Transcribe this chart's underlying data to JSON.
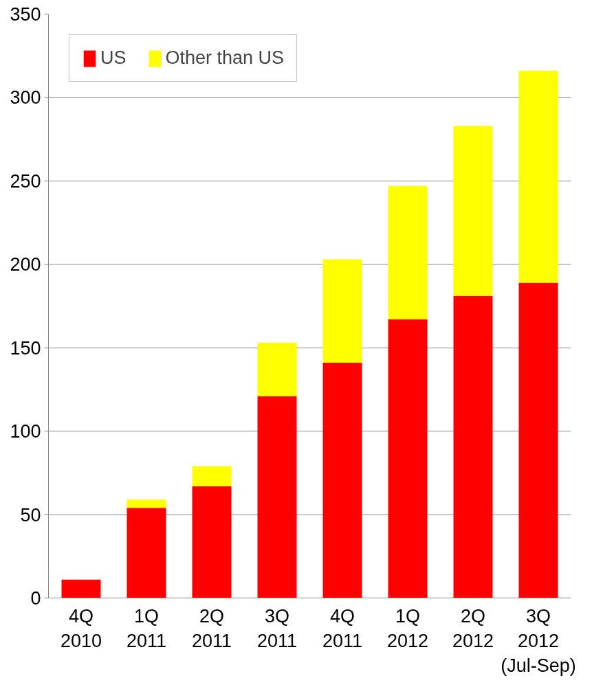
{
  "chart_data": {
    "type": "bar",
    "stacked": true,
    "categories": [
      "4Q\n2010",
      "1Q\n2011",
      "2Q\n2011",
      "3Q\n2011",
      "4Q\n2011",
      "1Q\n2012",
      "2Q\n2012",
      "3Q\n2012\n(Jul-Sep)"
    ],
    "series": [
      {
        "name": "US",
        "color": "#ff0000",
        "values": [
          11,
          54,
          67,
          121,
          141,
          167,
          181,
          189
        ]
      },
      {
        "name": "Other than US",
        "color": "#ffff00",
        "values": [
          0,
          5,
          12,
          32,
          62,
          80,
          102,
          127
        ]
      }
    ],
    "ylim": [
      0,
      350
    ],
    "yticks": [
      0,
      50,
      100,
      150,
      200,
      250,
      300,
      350
    ],
    "grid": "y",
    "legend": "top left"
  }
}
